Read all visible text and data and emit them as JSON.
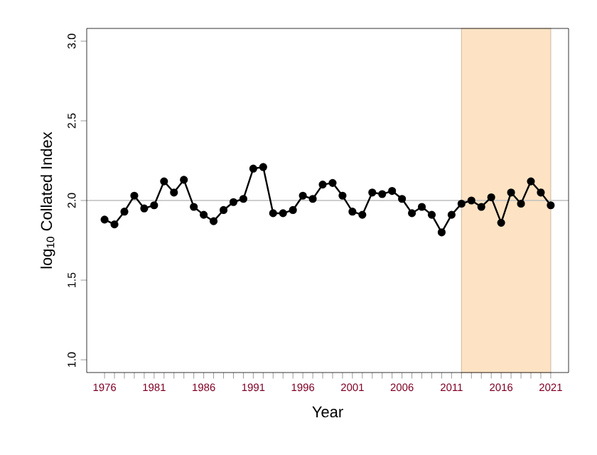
{
  "chart_data": {
    "type": "line",
    "xlabel": "Year",
    "ylabel": "log$_{10}$ Collated Index",
    "x": [
      1976,
      1977,
      1978,
      1979,
      1980,
      1981,
      1982,
      1983,
      1984,
      1985,
      1986,
      1987,
      1988,
      1989,
      1990,
      1991,
      1992,
      1993,
      1994,
      1995,
      1996,
      1997,
      1998,
      1999,
      2000,
      2001,
      2002,
      2003,
      2004,
      2005,
      2006,
      2007,
      2008,
      2009,
      2010,
      2011,
      2012,
      2013,
      2014,
      2015,
      2016,
      2017,
      2018,
      2019,
      2020,
      2021
    ],
    "series": [
      {
        "color": "#000000",
        "values": [
          1.88,
          1.85,
          1.93,
          2.03,
          1.95,
          1.97,
          2.12,
          2.05,
          2.13,
          1.96,
          1.91,
          1.87,
          1.94,
          1.99,
          2.01,
          2.2,
          2.21,
          1.92,
          1.92,
          1.94,
          2.03,
          2.01,
          2.1,
          2.11,
          2.03,
          1.93,
          1.91,
          2.05,
          2.04,
          2.06,
          2.01,
          1.92,
          1.96,
          1.91,
          1.8,
          1.91,
          1.98,
          2.0,
          1.96,
          2.02,
          1.86,
          2.05,
          1.98,
          2.12,
          2.05,
          1.97
        ]
      }
    ],
    "marker": "circle",
    "line_style": "solid",
    "grid": false,
    "xlim": [
      1974.2,
      2022.8
    ],
    "ylim": [
      0.92,
      3.08
    ],
    "xticks": [
      1976,
      {
        "value": 1977,
        "label": null
      },
      {
        "value": 1978,
        "label": null
      },
      {
        "value": 1979,
        "label": null
      },
      {
        "value": 1980,
        "label": null
      },
      1981,
      {
        "value": 1982,
        "label": null
      },
      {
        "value": 1983,
        "label": null
      },
      {
        "value": 1984,
        "label": null
      },
      {
        "value": 1985,
        "label": null
      },
      1986,
      {
        "value": 1987,
        "label": null
      },
      {
        "value": 1988,
        "label": null
      },
      {
        "value": 1989,
        "label": null
      },
      {
        "value": 1990,
        "label": null
      },
      1991,
      {
        "value": 1992,
        "label": null
      },
      {
        "value": 1993,
        "label": null
      },
      {
        "value": 1994,
        "label": null
      },
      {
        "value": 1995,
        "label": null
      },
      1996,
      {
        "value": 1997,
        "label": null
      },
      {
        "value": 1998,
        "label": null
      },
      {
        "value": 1999,
        "label": null
      },
      {
        "value": 2000,
        "label": null
      },
      2001,
      {
        "value": 2002,
        "label": null
      },
      {
        "value": 2003,
        "label": null
      },
      {
        "value": 2004,
        "label": null
      },
      {
        "value": 2005,
        "label": null
      },
      2006,
      {
        "value": 2007,
        "label": null
      },
      {
        "value": 2008,
        "label": null
      },
      {
        "value": 2009,
        "label": null
      },
      {
        "value": 2010,
        "label": null
      },
      2011,
      {
        "value": 2012,
        "label": null
      },
      {
        "value": 2013,
        "label": null
      },
      {
        "value": 2014,
        "label": null
      },
      {
        "value": 2015,
        "label": null
      },
      2016,
      {
        "value": 2017,
        "label": null
      },
      {
        "value": 2018,
        "label": null
      },
      {
        "value": 2019,
        "label": null
      },
      {
        "value": 2020,
        "label": null
      },
      2021
    ],
    "yticks": [
      {
        "value": 1.0,
        "label": "1.0"
      },
      1.5,
      {
        "value": 2.0,
        "label": "2.0"
      },
      2.5,
      {
        "value": 3.0,
        "label": "3.0"
      }
    ],
    "ref_lines": [
      {
        "axis": "y",
        "value": 2.0,
        "color": "#bebebe"
      }
    ],
    "bands": [
      {
        "axis": "x",
        "from": 2012,
        "to": 2021,
        "color": "#fde3c4"
      }
    ]
  }
}
